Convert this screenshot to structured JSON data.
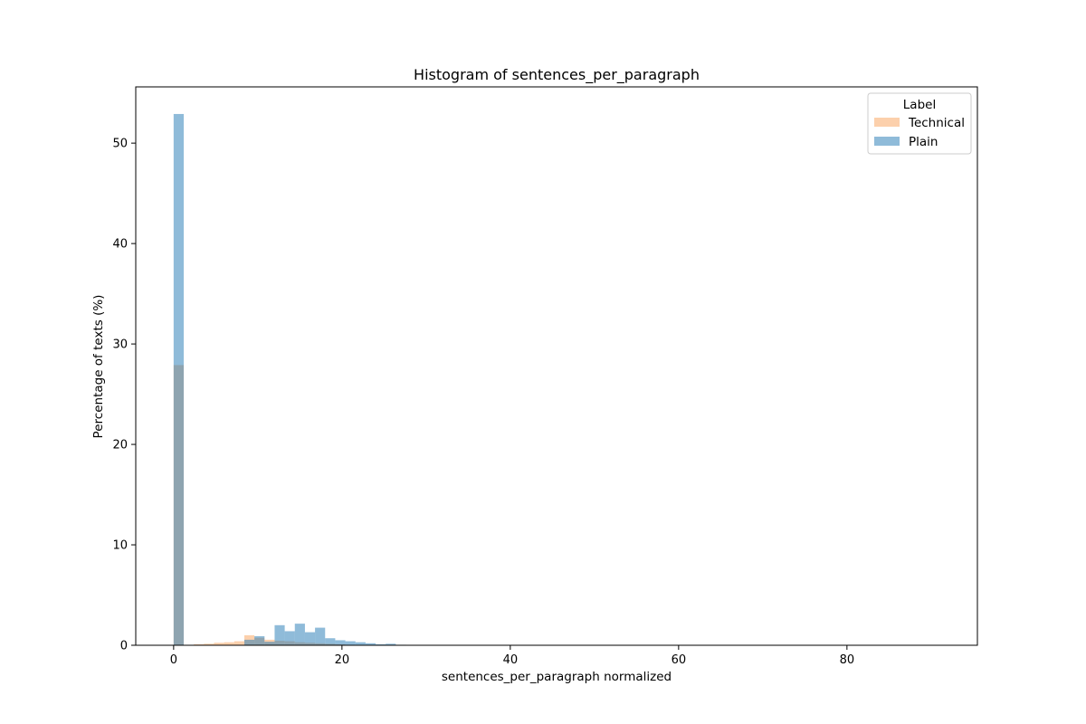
{
  "chart_data": {
    "type": "bar",
    "title": "Histogram of sentences_per_paragraph",
    "xlabel": "sentences_per_paragraph normalized",
    "ylabel": "Percentage of texts (%)",
    "xlim": [
      -4.5,
      95.5
    ],
    "ylim": [
      0,
      55.6
    ],
    "xticks": [
      0,
      20,
      40,
      60,
      80
    ],
    "yticks": [
      0,
      10,
      20,
      30,
      40,
      50
    ],
    "bin_width": 1.2,
    "overlap_color": "#93999e",
    "grid": false,
    "legend": {
      "title": "Label",
      "placement": "top-right",
      "entries": [
        "Technical",
        "Plain"
      ]
    },
    "series": [
      {
        "name": "Technical",
        "color": "#f9a15a",
        "alpha": 0.5,
        "bins": [
          [
            0,
            27.9
          ],
          [
            1.2,
            0.0
          ],
          [
            2.4,
            0.1
          ],
          [
            3.6,
            0.15
          ],
          [
            4.8,
            0.25
          ],
          [
            6.0,
            0.3
          ],
          [
            7.2,
            0.4
          ],
          [
            8.4,
            1.0
          ],
          [
            9.6,
            0.75
          ],
          [
            10.8,
            0.55
          ],
          [
            12.0,
            0.45
          ],
          [
            13.2,
            0.4
          ],
          [
            14.4,
            0.3
          ],
          [
            15.6,
            0.25
          ],
          [
            16.8,
            0.2
          ],
          [
            18.0,
            0.15
          ],
          [
            19.2,
            0.1
          ],
          [
            20.4,
            0.05
          ],
          [
            21.6,
            0.03
          ],
          [
            22.8,
            0.02
          ],
          [
            24.0,
            0.01
          ]
        ]
      },
      {
        "name": "Plain",
        "color": "#1f77b4",
        "alpha": 0.5,
        "bins": [
          [
            0,
            52.9
          ],
          [
            1.2,
            0.0
          ],
          [
            2.4,
            0.0
          ],
          [
            3.6,
            0.0
          ],
          [
            4.8,
            0.0
          ],
          [
            6.0,
            0.0
          ],
          [
            7.2,
            0.0
          ],
          [
            8.4,
            0.55
          ],
          [
            9.6,
            0.9
          ],
          [
            10.8,
            0.35
          ],
          [
            12.0,
            2.0
          ],
          [
            13.2,
            1.4
          ],
          [
            14.4,
            2.15
          ],
          [
            15.6,
            1.3
          ],
          [
            16.8,
            1.75
          ],
          [
            18.0,
            0.7
          ],
          [
            19.2,
            0.5
          ],
          [
            20.4,
            0.4
          ],
          [
            21.6,
            0.3
          ],
          [
            22.8,
            0.2
          ],
          [
            24.0,
            0.1
          ],
          [
            25.2,
            0.15
          ],
          [
            26.4,
            0.05
          ],
          [
            27.6,
            0.03
          ]
        ]
      }
    ]
  }
}
